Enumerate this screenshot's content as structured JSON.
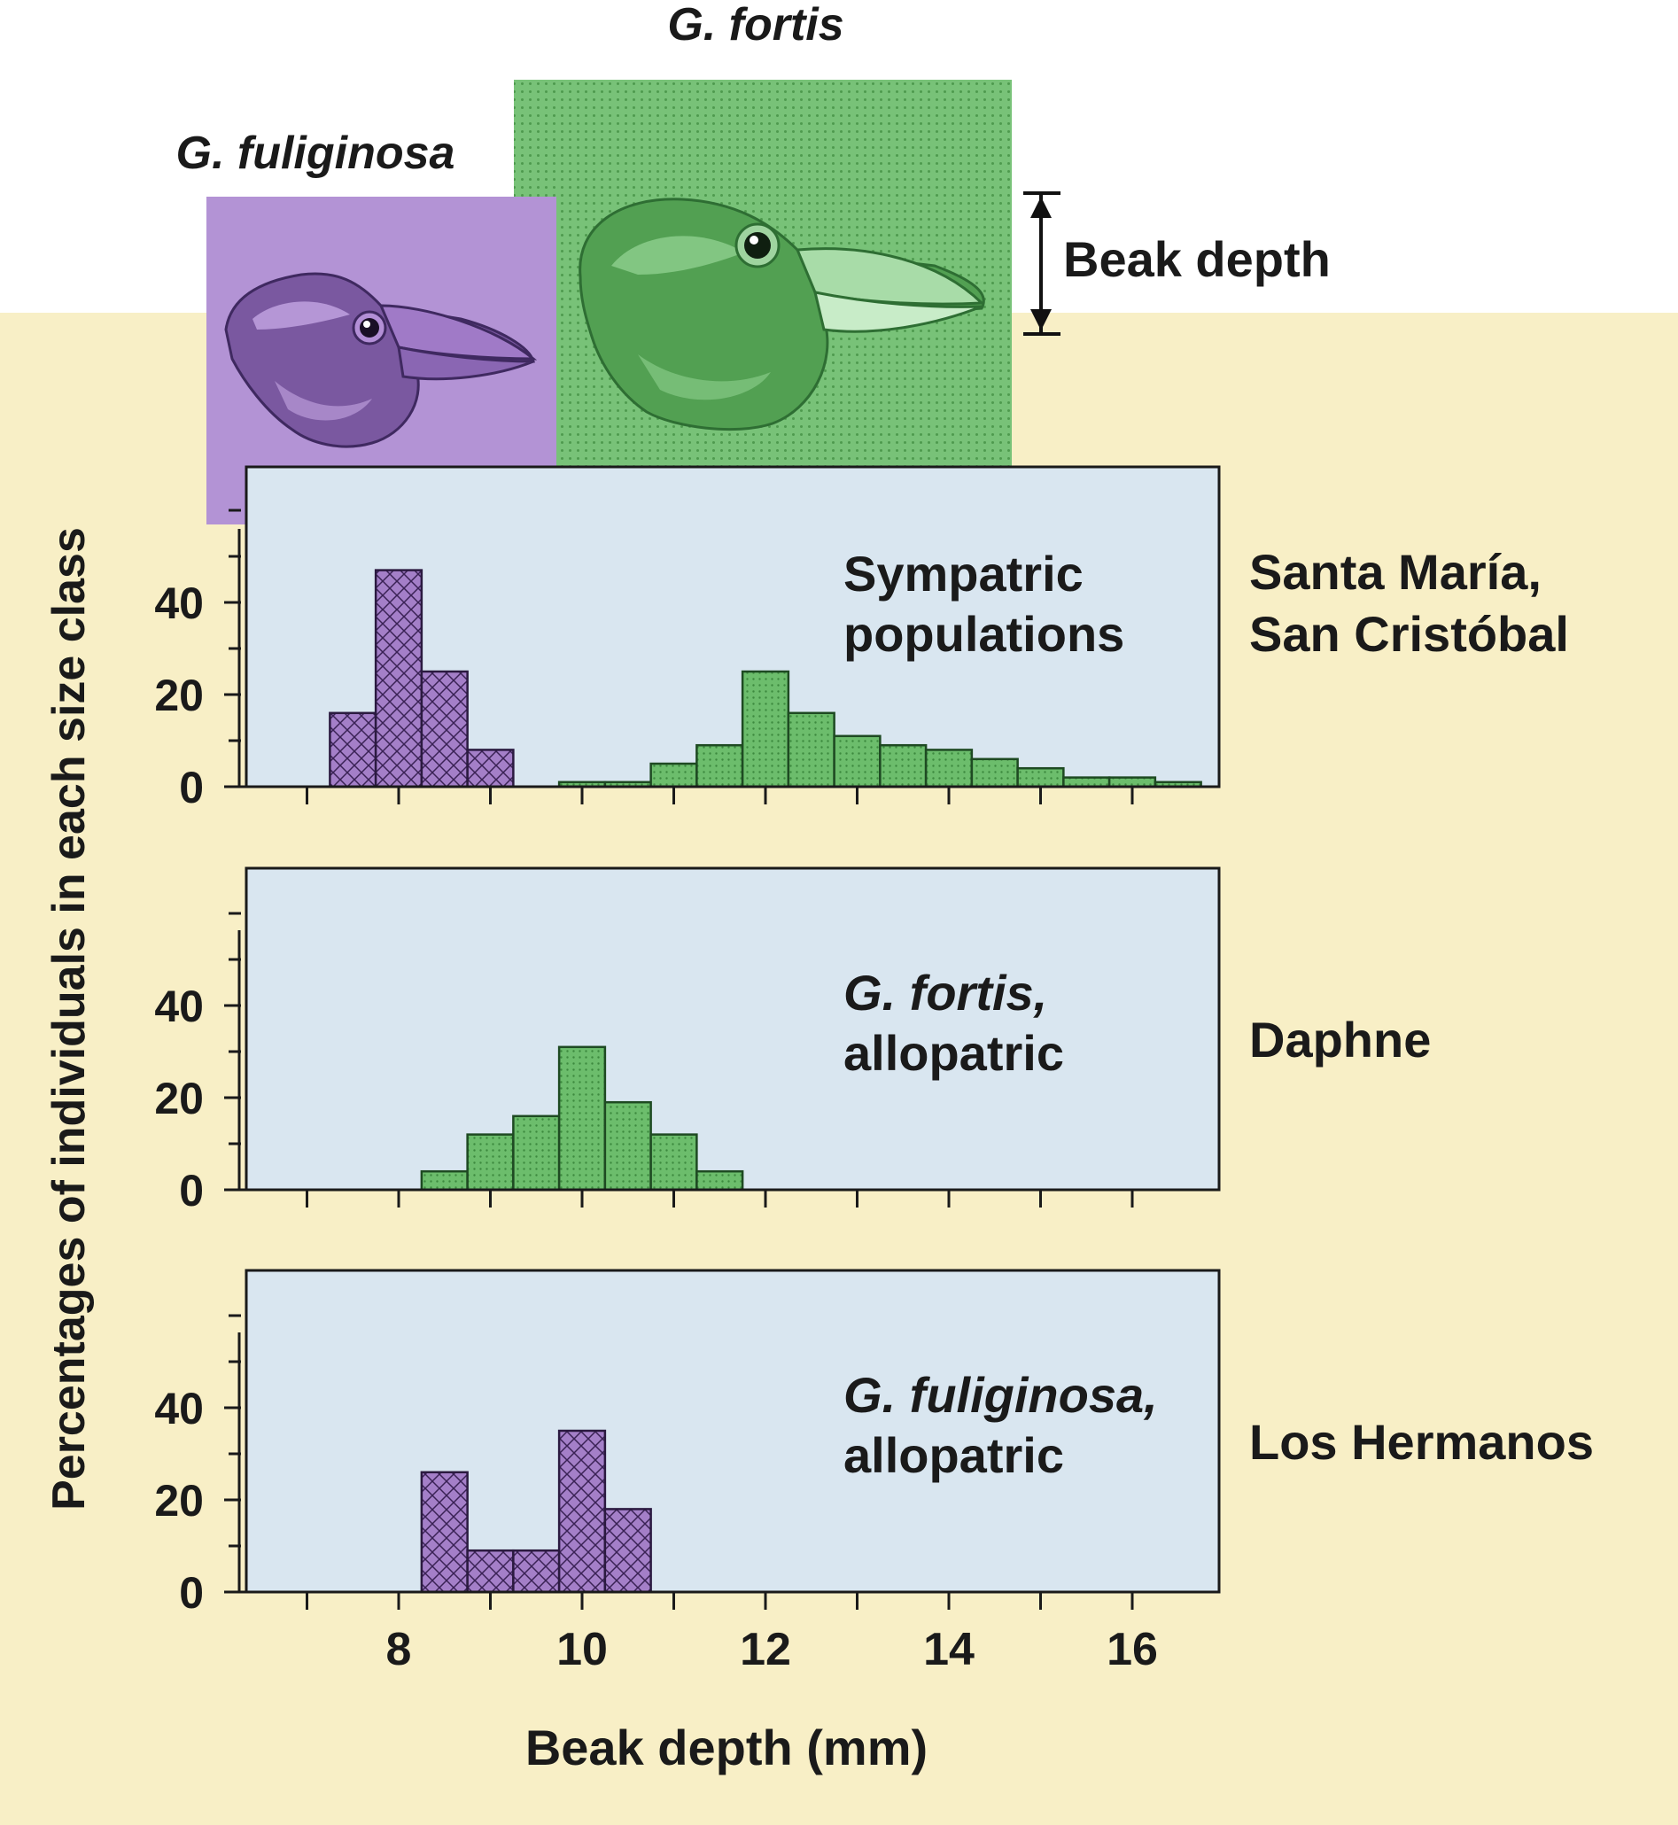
{
  "header": {
    "fortis_title": "G. fortis",
    "fuliginosa_title": "G. fuliginosa",
    "beak_depth_label": "Beak depth"
  },
  "axis": {
    "ylabel": "Percentages of individuals in each size class",
    "xlabel": "Beak depth (mm)"
  },
  "colors": {
    "fuliginosa": "#9b78bf",
    "fortis": "#6cbd6c",
    "panel": "#d9e6f0",
    "background": "#f8efc6"
  },
  "chart_data": [
    {
      "type": "histogram",
      "panel_label": [
        "Sympatric",
        "populations"
      ],
      "location": [
        "Santa María,",
        "San Cristóbal"
      ],
      "xlim": [
        6.5,
        17
      ],
      "ylim": [
        0,
        60
      ],
      "xticks": [
        8,
        10,
        12,
        14,
        16
      ],
      "yticks": [
        0,
        20,
        40
      ],
      "series": [
        {
          "species": "fuliginosa",
          "bin_edges": [
            7.25,
            7.75,
            8.25,
            8.75,
            9.25
          ],
          "values": [
            16,
            47,
            25,
            8
          ]
        },
        {
          "species": "fortis",
          "bin_edges": [
            9.75,
            10.25,
            10.75,
            11.25,
            11.75,
            12.25,
            12.75,
            13.25,
            13.75,
            14.25,
            14.75,
            15.25,
            15.75,
            16.25,
            16.75
          ],
          "values": [
            1,
            1,
            5,
            9,
            25,
            16,
            11,
            9,
            8,
            6,
            4,
            2,
            2,
            1
          ]
        }
      ]
    },
    {
      "type": "histogram",
      "panel_label": [
        "G. fortis,",
        "allopatric"
      ],
      "location": [
        "Daphne"
      ],
      "xlim": [
        6.5,
        17
      ],
      "ylim": [
        0,
        60
      ],
      "xticks": [
        8,
        10,
        12,
        14,
        16
      ],
      "yticks": [
        0,
        20,
        40
      ],
      "series": [
        {
          "species": "fortis",
          "bin_edges": [
            8.25,
            8.75,
            9.25,
            9.75,
            10.25,
            10.75,
            11.25,
            11.75
          ],
          "values": [
            4,
            12,
            16,
            31,
            19,
            12,
            4
          ]
        }
      ]
    },
    {
      "type": "histogram",
      "panel_label": [
        "G. fuliginosa,",
        "allopatric"
      ],
      "location": [
        "Los Hermanos"
      ],
      "xlim": [
        6.5,
        17
      ],
      "ylim": [
        0,
        60
      ],
      "xticks": [
        8,
        10,
        12,
        14,
        16
      ],
      "yticks": [
        0,
        20,
        40
      ],
      "series": [
        {
          "species": "fuliginosa",
          "bin_edges": [
            8.25,
            8.75,
            9.25,
            9.75,
            10.25,
            10.75
          ],
          "values": [
            26,
            9,
            9,
            35,
            18
          ]
        }
      ]
    }
  ]
}
